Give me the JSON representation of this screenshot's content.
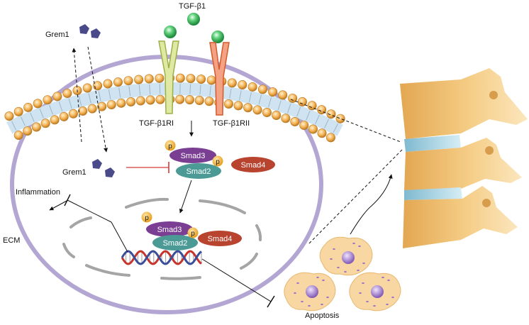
{
  "labels": {
    "ligand": "TGF-β1",
    "grem1_top": "Grem1",
    "grem1_mid": "Grem1",
    "receptor1": "TGF-β1RI",
    "receptor2": "TGF-β1RII",
    "smad3_cyto": "Smad3",
    "smad2_cyto": "Smad2",
    "smad4_cyto": "Smad4",
    "smad3_nuc": "Smad3",
    "smad2_nuc": "Smad2",
    "smad4_nuc": "Smad4",
    "inflammation": "Inflammation",
    "ecm": "ECM",
    "apoptosis": "Apoptosis",
    "phospho": "p"
  },
  "colors": {
    "cell_membrane": "#b3a6d3",
    "lipid_head": "#f2b052",
    "lipid_tail_band": "#cfe3f0",
    "ligand": "#3db85a",
    "receptor1": "#c9d97a",
    "receptor2": "#e8734a",
    "smad3": "#7a3f93",
    "smad2": "#4c9a96",
    "smad4": "#b8432f",
    "phospho": "#f3b33a",
    "grem1": "#4a4a8a",
    "inhibit": "#d63b3b",
    "spine": "#e9b663",
    "disc": "#a9d4e3",
    "apoptotic_cell": "#f8d7a2",
    "apoptotic_nucleus": "#9d76c4"
  }
}
